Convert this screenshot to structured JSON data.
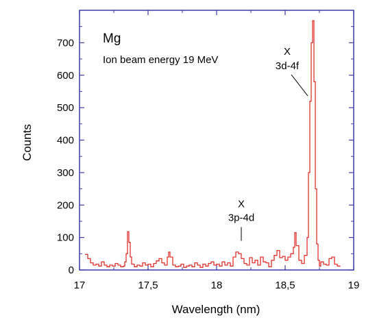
{
  "chart_data": {
    "type": "line",
    "title": "Mg",
    "subtitle": "Ion beam energy 19 MeV",
    "xlabel": "Wavelength (nm)",
    "ylabel": "Counts",
    "xlim": [
      17,
      19
    ],
    "ylim": [
      0,
      800
    ],
    "x_ticks": [
      {
        "value": 17,
        "label": "17"
      },
      {
        "value": 17.5,
        "label": "17,5"
      },
      {
        "value": 18,
        "label": "18"
      },
      {
        "value": 18.5,
        "label": "18,5"
      },
      {
        "value": 19,
        "label": "19"
      }
    ],
    "y_ticks": [
      {
        "value": 0,
        "label": "0"
      },
      {
        "value": 100,
        "label": "100"
      },
      {
        "value": 200,
        "label": "200"
      },
      {
        "value": 300,
        "label": "300"
      },
      {
        "value": 400,
        "label": "400"
      },
      {
        "value": 500,
        "label": "500"
      },
      {
        "value": 600,
        "label": "600"
      },
      {
        "value": 700,
        "label": "700"
      }
    ],
    "grid": false,
    "colors": {
      "series": "#e0302a",
      "axes": "#3a3aa8"
    },
    "annotations": [
      {
        "marker": "X",
        "label": "3d-4f",
        "x": 18.68,
        "y": 530
      },
      {
        "marker": "X",
        "label": "3p-4d",
        "x": 18.18,
        "y": 90
      }
    ],
    "series": [
      {
        "x": [
          17.04,
          17.06,
          17.08,
          17.1,
          17.12,
          17.14,
          17.16,
          17.18,
          17.2,
          17.22,
          17.24,
          17.26,
          17.28,
          17.3,
          17.32,
          17.33,
          17.34,
          17.35,
          17.36,
          17.37,
          17.38,
          17.4,
          17.42,
          17.44,
          17.46,
          17.48,
          17.5,
          17.52,
          17.54,
          17.56,
          17.58,
          17.6,
          17.62,
          17.64,
          17.65,
          17.66,
          17.68,
          17.7,
          17.72,
          17.74,
          17.76,
          17.78,
          17.8,
          17.82,
          17.84,
          17.86,
          17.88,
          17.9,
          17.92,
          17.94,
          17.96,
          17.98,
          18.0,
          18.02,
          18.04,
          18.06,
          18.08,
          18.1,
          18.12,
          18.14,
          18.16,
          18.18,
          18.2,
          18.22,
          18.24,
          18.26,
          18.28,
          18.3,
          18.32,
          18.34,
          18.36,
          18.38,
          18.4,
          18.42,
          18.44,
          18.46,
          18.48,
          18.5,
          18.52,
          18.54,
          18.56,
          18.57,
          18.58,
          18.6,
          18.62,
          18.64,
          18.66,
          18.67,
          18.68,
          18.69,
          18.7,
          18.71,
          18.72,
          18.73,
          18.74,
          18.75,
          18.76,
          18.78,
          18.8,
          18.82,
          18.84,
          18.86,
          18.88,
          18.9
        ],
        "y": [
          48,
          35,
          22,
          15,
          18,
          12,
          25,
          15,
          10,
          15,
          12,
          20,
          15,
          10,
          12,
          25,
          50,
          118,
          85,
          40,
          18,
          10,
          15,
          12,
          22,
          15,
          18,
          10,
          20,
          28,
          35,
          22,
          15,
          40,
          55,
          40,
          15,
          10,
          12,
          18,
          8,
          12,
          15,
          10,
          22,
          15,
          8,
          18,
          12,
          20,
          25,
          15,
          18,
          12,
          25,
          15,
          22,
          12,
          40,
          55,
          50,
          35,
          20,
          15,
          38,
          22,
          30,
          15,
          40,
          25,
          22,
          10,
          30,
          45,
          60,
          38,
          42,
          30,
          40,
          50,
          70,
          115,
          75,
          30,
          20,
          45,
          100,
          300,
          520,
          700,
          768,
          580,
          250,
          80,
          30,
          12,
          25,
          18,
          15,
          35,
          40,
          18,
          12,
          10
        ]
      }
    ]
  }
}
